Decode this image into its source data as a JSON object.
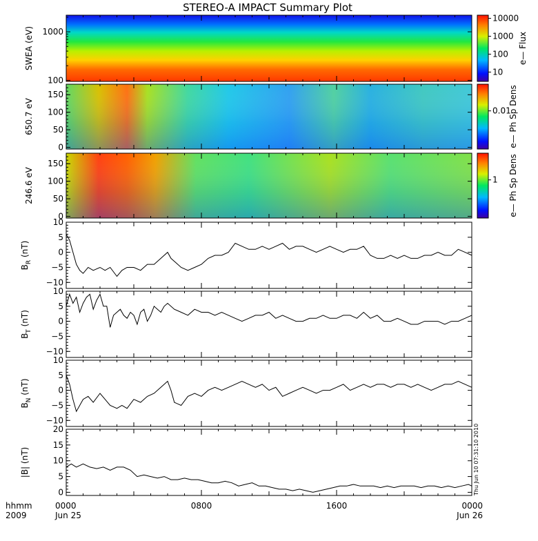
{
  "title": "STEREO-A IMPACT Summary Plot",
  "stamp": "Thu Jun 10 07:31:10 2010",
  "footer": {
    "left_top": "hhmm",
    "left_bottom": "2009",
    "ticks": [
      {
        "top": "0000",
        "bottom": "Jun 25"
      },
      {
        "top": "0800",
        "bottom": ""
      },
      {
        "top": "1600",
        "bottom": ""
      },
      {
        "top": "0000",
        "bottom": "Jun 26"
      }
    ]
  },
  "colors": {
    "line": "#000000",
    "frame": "#000000"
  },
  "chart_data": [
    {
      "id": "swea",
      "type": "heatmap",
      "ylabel": "SWEA (eV)",
      "yscale": "log",
      "ylim": [
        95,
        2200
      ],
      "yticks": [
        {
          "value": 100,
          "label": "100"
        },
        {
          "value": 1000,
          "label": "1000"
        }
      ],
      "colorbar": {
        "label": "e— Flux",
        "scale": "log",
        "range": [
          3,
          15000
        ],
        "ticks": [
          {
            "value": 10,
            "label": "10"
          },
          {
            "value": 100,
            "label": "100"
          },
          {
            "value": 1000,
            "label": "1000"
          },
          {
            "value": 10000,
            "label": "10000"
          }
        ]
      },
      "xlim": [
        0,
        24
      ]
    },
    {
      "id": "pad650",
      "type": "heatmap",
      "ylabel": "650.7 eV",
      "ylim": [
        -5,
        180
      ],
      "yticks": [
        {
          "value": 0,
          "label": "0"
        },
        {
          "value": 50,
          "label": "50"
        },
        {
          "value": 100,
          "label": "100"
        },
        {
          "value": 150,
          "label": "150"
        }
      ],
      "colorbar": {
        "label": "e— Ph Sp Dens",
        "scale": "log",
        "range": [
          0.001,
          0.05
        ],
        "ticks": [
          {
            "value": 0.01,
            "label": "0.01"
          }
        ]
      },
      "xlim": [
        0,
        24
      ]
    },
    {
      "id": "pad246",
      "type": "heatmap",
      "ylabel": "246.6 eV",
      "ylim": [
        -5,
        180
      ],
      "yticks": [
        {
          "value": 0,
          "label": "0"
        },
        {
          "value": 50,
          "label": "50"
        },
        {
          "value": 100,
          "label": "100"
        },
        {
          "value": 150,
          "label": "150"
        }
      ],
      "colorbar": {
        "label": "e— Ph Sp Dens",
        "scale": "log",
        "range": [
          0.1,
          5
        ],
        "ticks": [
          {
            "value": 1,
            "label": "1"
          }
        ]
      },
      "xlim": [
        0,
        24
      ]
    },
    {
      "id": "br",
      "type": "line",
      "ylabel": "B",
      "ysub": "R",
      "yunit": " (nT)",
      "ylim": [
        -12,
        10
      ],
      "yticks": [
        {
          "value": -10,
          "label": "−10"
        },
        {
          "value": -5,
          "label": "−5"
        },
        {
          "value": 0,
          "label": "0"
        },
        {
          "value": 5,
          "label": "5"
        },
        {
          "value": 10,
          "label": "10"
        }
      ],
      "xlim": [
        0,
        24
      ],
      "x": [
        0,
        0.2,
        0.4,
        0.6,
        0.8,
        1,
        1.3,
        1.6,
        2,
        2.3,
        2.6,
        3,
        3.3,
        3.6,
        4,
        4.4,
        4.8,
        5.2,
        5.6,
        6,
        6.2,
        6.4,
        6.8,
        7.2,
        7.6,
        8,
        8.4,
        8.8,
        9.2,
        9.6,
        10,
        10.4,
        10.8,
        11.2,
        11.6,
        12,
        12.4,
        12.8,
        13.2,
        13.6,
        14,
        14.4,
        14.8,
        15.2,
        15.6,
        16,
        16.4,
        16.8,
        17.2,
        17.6,
        18,
        18.4,
        18.8,
        19.2,
        19.6,
        20,
        20.4,
        20.8,
        21.2,
        21.6,
        22,
        22.4,
        22.8,
        23.2,
        23.6,
        24
      ],
      "y": [
        6,
        4,
        0,
        -4,
        -6,
        -7,
        -5,
        -6,
        -5,
        -6,
        -5,
        -8,
        -6,
        -5,
        -5,
        -6,
        -4,
        -4,
        -2,
        0,
        -2,
        -3,
        -5,
        -6,
        -5,
        -4,
        -2,
        -1,
        -1,
        0,
        3,
        2,
        1,
        1,
        2,
        1,
        2,
        3,
        1,
        2,
        2,
        1,
        0,
        1,
        2,
        1,
        0,
        1,
        1,
        2,
        -1,
        -2,
        -2,
        -1,
        -2,
        -1,
        -2,
        -2,
        -1,
        -1,
        0,
        -1,
        -1,
        1,
        0,
        -1
      ]
    },
    {
      "id": "bt",
      "type": "line",
      "ylabel": "B",
      "ysub": "T",
      "yunit": " (nT)",
      "ylim": [
        -12,
        10
      ],
      "yticks": [
        {
          "value": -10,
          "label": "−10"
        },
        {
          "value": -5,
          "label": "−5"
        },
        {
          "value": 0,
          "label": "0"
        },
        {
          "value": 5,
          "label": "5"
        },
        {
          "value": 10,
          "label": "10"
        }
      ],
      "xlim": [
        0,
        24
      ],
      "x": [
        0,
        0.2,
        0.4,
        0.6,
        0.8,
        1,
        1.2,
        1.4,
        1.6,
        1.8,
        2,
        2.2,
        2.4,
        2.6,
        2.8,
        3,
        3.2,
        3.4,
        3.6,
        3.8,
        4,
        4.2,
        4.4,
        4.6,
        4.8,
        5,
        5.2,
        5.4,
        5.6,
        5.8,
        6,
        6.4,
        6.8,
        7.2,
        7.6,
        8,
        8.4,
        8.8,
        9.2,
        9.6,
        10,
        10.4,
        10.8,
        11.2,
        11.6,
        12,
        12.4,
        12.8,
        13.2,
        13.6,
        14,
        14.4,
        14.8,
        15.2,
        15.6,
        16,
        16.4,
        16.8,
        17.2,
        17.6,
        18,
        18.4,
        18.8,
        19.2,
        19.6,
        20,
        20.4,
        20.8,
        21.2,
        21.6,
        22,
        22.4,
        22.8,
        23.2,
        23.6,
        24
      ],
      "y": [
        5,
        9,
        6,
        8,
        3,
        6,
        8,
        9,
        4,
        7,
        9,
        5,
        5,
        -2,
        2,
        3,
        4,
        2,
        1,
        3,
        2,
        -1,
        3,
        4,
        0,
        2,
        5,
        4,
        3,
        5,
        6,
        4,
        3,
        2,
        4,
        3,
        3,
        2,
        3,
        2,
        1,
        0,
        1,
        2,
        2,
        3,
        1,
        2,
        1,
        0,
        0,
        1,
        1,
        2,
        1,
        1,
        2,
        2,
        1,
        3,
        1,
        2,
        0,
        0,
        1,
        0,
        -1,
        -1,
        0,
        0,
        0,
        -1,
        0,
        0,
        1,
        2
      ]
    },
    {
      "id": "bn",
      "type": "line",
      "ylabel": "B",
      "ysub": "N",
      "yunit": " (nT)",
      "ylim": [
        -12,
        10
      ],
      "yticks": [
        {
          "value": -10,
          "label": "−10"
        },
        {
          "value": -5,
          "label": "−5"
        },
        {
          "value": 0,
          "label": "0"
        },
        {
          "value": 5,
          "label": "5"
        },
        {
          "value": 10,
          "label": "10"
        }
      ],
      "xlim": [
        0,
        24
      ],
      "x": [
        0,
        0.2,
        0.4,
        0.6,
        0.8,
        1,
        1.3,
        1.6,
        2,
        2.3,
        2.6,
        3,
        3.3,
        3.6,
        4,
        4.4,
        4.8,
        5.2,
        5.6,
        6,
        6.2,
        6.4,
        6.8,
        7.2,
        7.6,
        8,
        8.4,
        8.8,
        9.2,
        9.6,
        10,
        10.4,
        10.8,
        11.2,
        11.6,
        12,
        12.4,
        12.8,
        13.2,
        13.6,
        14,
        14.4,
        14.8,
        15.2,
        15.6,
        16,
        16.4,
        16.8,
        17.2,
        17.6,
        18,
        18.4,
        18.8,
        19.2,
        19.6,
        20,
        20.4,
        20.8,
        21.2,
        21.6,
        22,
        22.4,
        22.8,
        23.2,
        23.6,
        24
      ],
      "y": [
        5,
        2,
        -3,
        -7,
        -5,
        -3,
        -2,
        -4,
        -1,
        -3,
        -5,
        -6,
        -5,
        -6,
        -3,
        -4,
        -2,
        -1,
        1,
        3,
        0,
        -4,
        -5,
        -2,
        -1,
        -2,
        0,
        1,
        0,
        1,
        2,
        3,
        2,
        1,
        2,
        0,
        1,
        -2,
        -1,
        0,
        1,
        0,
        -1,
        0,
        0,
        1,
        2,
        0,
        1,
        2,
        1,
        2,
        2,
        1,
        2,
        2,
        1,
        2,
        1,
        0,
        1,
        2,
        2,
        3,
        2,
        1
      ]
    },
    {
      "id": "bmag",
      "type": "line",
      "ylabel": "|B| (nT)",
      "ylim": [
        -1,
        20
      ],
      "yticks": [
        {
          "value": 0,
          "label": "0"
        },
        {
          "value": 5,
          "label": "5"
        },
        {
          "value": 10,
          "label": "10"
        },
        {
          "value": 15,
          "label": "15"
        },
        {
          "value": 20,
          "label": "20"
        }
      ],
      "xlim": [
        0,
        24
      ],
      "x": [
        0,
        0.3,
        0.6,
        1,
        1.4,
        1.8,
        2.2,
        2.6,
        3,
        3.4,
        3.8,
        4.2,
        4.6,
        5,
        5.4,
        5.8,
        6.2,
        6.6,
        7,
        7.4,
        7.8,
        8.2,
        8.6,
        9,
        9.4,
        9.8,
        10.2,
        10.6,
        11,
        11.4,
        11.8,
        12.2,
        12.6,
        13,
        13.4,
        13.8,
        14.2,
        14.6,
        15,
        15.4,
        15.8,
        16.2,
        16.6,
        17,
        17.4,
        17.8,
        18.2,
        18.6,
        19,
        19.4,
        19.8,
        20.2,
        20.6,
        21,
        21.4,
        21.8,
        22.2,
        22.6,
        23,
        23.4,
        23.8,
        24
      ],
      "y": [
        8,
        9,
        8,
        9,
        8,
        7.5,
        8,
        7,
        8,
        8,
        7,
        5,
        5.5,
        5,
        4.5,
        5,
        4,
        4,
        4.5,
        4,
        4,
        3.5,
        3,
        3,
        3.5,
        3,
        2,
        2.5,
        3,
        2,
        2,
        1.5,
        1,
        1,
        0.5,
        1,
        0.5,
        0,
        0.5,
        1,
        1.5,
        2,
        2,
        2.5,
        2,
        2,
        2,
        1.5,
        2,
        1.5,
        2,
        2,
        2,
        1.5,
        2,
        2,
        1.5,
        2,
        1.5,
        2,
        2.5,
        2
      ]
    }
  ]
}
